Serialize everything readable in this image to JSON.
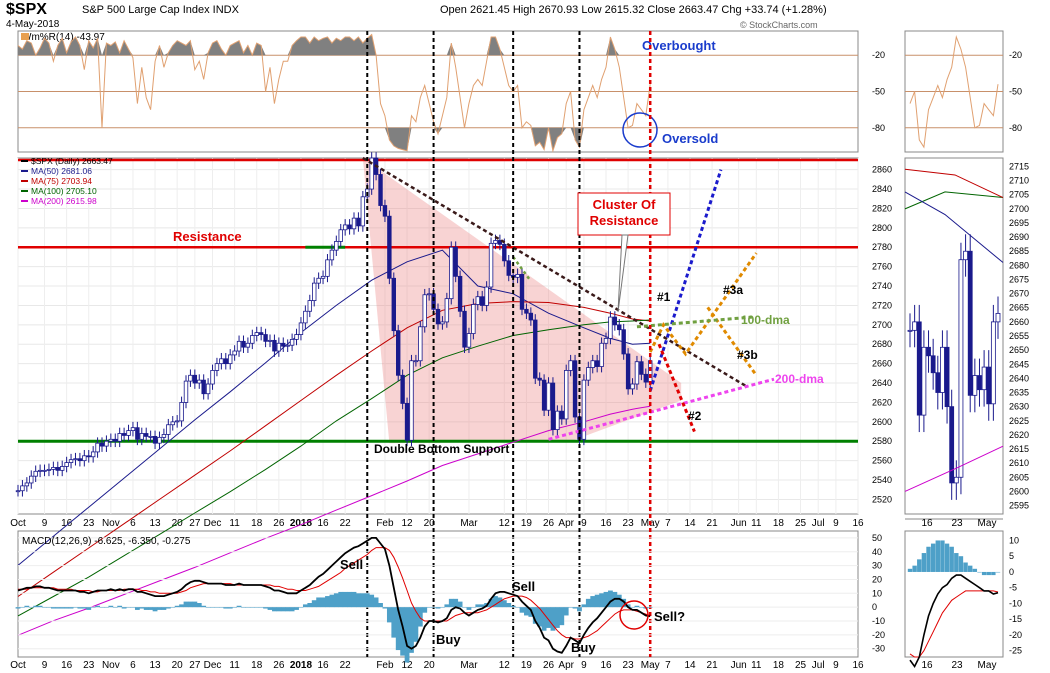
{
  "header": {
    "symbol": "$SPX",
    "description": "S&P 500 Large Cap Index INDX",
    "date": "4-May-2018",
    "open_label": "Open",
    "open": "2621.45",
    "high_label": "High",
    "high": "2670.93",
    "low_label": "Low",
    "low": "2615.32",
    "close_label": "Close",
    "close": "2663.47",
    "chg_label": "Chg",
    "chg": "+33.74 (+1.28%)",
    "credit": "© StockCharts.com"
  },
  "wpr_panel": {
    "label": "Wm%R(14) -43.97",
    "ticks": [
      -20,
      -50,
      -80
    ],
    "ylim": [
      -100,
      0
    ],
    "overbought_label": "Overbought",
    "oversold_label": "Oversold"
  },
  "price_panel": {
    "legend": [
      {
        "label": "$SPX (Daily) 2663.47",
        "color": "#000000"
      },
      {
        "label": "MA(50) 2681.06",
        "color": "#1a1a8c"
      },
      {
        "label": "MA(75) 2703.94",
        "color": "#c00000"
      },
      {
        "label": "MA(100) 2705.10",
        "color": "#006400"
      },
      {
        "label": "MA(200) 2615.98",
        "color": "#cc00cc"
      }
    ],
    "y_ticks": [
      2520,
      2540,
      2560,
      2580,
      2600,
      2620,
      2640,
      2660,
      2680,
      2700,
      2720,
      2740,
      2760,
      2780,
      2800,
      2820,
      2840,
      2860
    ],
    "ylim": [
      2505,
      2872
    ],
    "resistance_levels": [
      2870,
      2780
    ],
    "support_level": 2580,
    "annotations": {
      "resistance": "Resistance",
      "cluster": "Cluster Of\nResistance",
      "double_bottom": "Double Bottom Support",
      "s1": "#1",
      "s2": "#2",
      "s3a": "#3a",
      "s3b": "#3b",
      "dma100": "100-dma",
      "dma200": "200-dma"
    }
  },
  "side_panel": {
    "price_ticks": [
      2595,
      2600,
      2605,
      2610,
      2615,
      2620,
      2625,
      2630,
      2635,
      2640,
      2645,
      2650,
      2655,
      2660,
      2665,
      2670,
      2675,
      2680,
      2685,
      2690,
      2695,
      2700,
      2705,
      2710,
      2715
    ],
    "price_ylim": [
      2592,
      2718
    ],
    "wpr_ticks": [
      -20,
      -50,
      -80
    ],
    "macd_ticks": [
      10,
      5,
      0,
      -5,
      -10,
      -15,
      -20,
      -25
    ],
    "macd_ylim": [
      -27,
      13
    ],
    "x_labels": [
      "16",
      "23",
      "May"
    ]
  },
  "macd_panel": {
    "label": "MACD(12,26,9) -6.625, -6.350, -0.275",
    "ticks": [
      50,
      40,
      30,
      20,
      10,
      0,
      -10,
      -20,
      -30
    ],
    "ylim": [
      -36,
      55
    ],
    "annotations": {
      "sell1": "Sell",
      "buy1": "Buy",
      "sell2": "Sell",
      "buy2": "Buy",
      "sell3": "Sell?"
    }
  },
  "x_axis_labels": [
    {
      "t": 0,
      "label": "Oct"
    },
    {
      "t": 6,
      "label": "9"
    },
    {
      "t": 11,
      "label": "16"
    },
    {
      "t": 16,
      "label": "23"
    },
    {
      "t": 21,
      "label": "Nov"
    },
    {
      "t": 26,
      "label": "6"
    },
    {
      "t": 31,
      "label": "13"
    },
    {
      "t": 36,
      "label": "20"
    },
    {
      "t": 40,
      "label": "27"
    },
    {
      "t": 44,
      "label": "Dec"
    },
    {
      "t": 49,
      "label": "11"
    },
    {
      "t": 54,
      "label": "18"
    },
    {
      "t": 59,
      "label": "26"
    },
    {
      "t": 64,
      "label": "2018"
    },
    {
      "t": 69,
      "label": "16"
    },
    {
      "t": 74,
      "label": "22"
    },
    {
      "t": 83,
      "label": "Feb"
    },
    {
      "t": 88,
      "label": "12"
    },
    {
      "t": 93,
      "label": "20"
    },
    {
      "t": 102,
      "label": "Mar"
    },
    {
      "t": 110,
      "label": "12"
    },
    {
      "t": 115,
      "label": "19"
    },
    {
      "t": 120,
      "label": "26"
    },
    {
      "t": 124,
      "label": "Apr"
    },
    {
      "t": 128,
      "label": "9"
    },
    {
      "t": 133,
      "label": "16"
    },
    {
      "t": 138,
      "label": "23"
    },
    {
      "t": 143,
      "label": "May"
    },
    {
      "t": 147,
      "label": "7"
    },
    {
      "t": 152,
      "label": "14"
    },
    {
      "t": 157,
      "label": "21"
    },
    {
      "t": 163,
      "label": "Jun"
    },
    {
      "t": 167,
      "label": "11"
    },
    {
      "t": 172,
      "label": "18"
    },
    {
      "t": 177,
      "label": "25"
    },
    {
      "t": 181,
      "label": "Jul"
    },
    {
      "t": 185,
      "label": "9"
    },
    {
      "t": 190,
      "label": "16"
    }
  ],
  "chart_data": {
    "type": "line",
    "title": "$SPX S&P 500 Large Cap Index INDX",
    "x_unit": "trading day index (0 = 2 Oct 2017)",
    "events_vertical_lines_t": [
      79,
      94,
      112,
      127
    ],
    "today_line_t": 143,
    "series": [
      {
        "name": "$SPX (Daily)",
        "values": [
          2529,
          2534,
          2537,
          2544,
          2549,
          2550,
          2550,
          2551,
          2553,
          2550,
          2554,
          2558,
          2561,
          2562,
          2560,
          2565,
          2564,
          2569,
          2578,
          2575,
          2580,
          2582,
          2580,
          2588,
          2586,
          2591,
          2594,
          2582,
          2588,
          2585,
          2585,
          2578,
          2584,
          2587,
          2597,
          2600,
          2601,
          2620,
          2642,
          2648,
          2640,
          2643,
          2629,
          2639,
          2653,
          2660,
          2665,
          2660,
          2669,
          2673,
          2683,
          2677,
          2681,
          2689,
          2692,
          2690,
          2683,
          2684,
          2673,
          2681,
          2678,
          2679,
          2685,
          2690,
          2702,
          2714,
          2725,
          2743,
          2748,
          2750,
          2767,
          2777,
          2786,
          2798,
          2803,
          2799,
          2810,
          2802,
          2832,
          2840,
          2872,
          2855,
          2823,
          2812,
          2748,
          2694,
          2648,
          2619,
          2581,
          2663,
          2663,
          2698,
          2731,
          2732,
          2716,
          2701,
          2703,
          2727,
          2780,
          2750,
          2714,
          2677,
          2691,
          2721,
          2729,
          2720,
          2739,
          2784,
          2787,
          2783,
          2766,
          2751,
          2749,
          2752,
          2716,
          2712,
          2705,
          2645,
          2643,
          2612,
          2640,
          2592,
          2611,
          2603,
          2653,
          2663,
          2605,
          2582,
          2643,
          2656,
          2663,
          2657,
          2681,
          2686,
          2708,
          2700,
          2695,
          2670,
          2634,
          2639,
          2662,
          2649,
          2641,
          2663
        ]
      },
      {
        "name": "MA(50)",
        "values": [
          2452,
          2482,
          2512,
          2542,
          2572,
          2602,
          2631,
          2661,
          2692,
          2720,
          2746,
          2765,
          2777,
          2740,
          2732,
          2712,
          2697,
          2686,
          2680,
          2681
        ]
      },
      {
        "name": "MA(75)",
        "values": [
          2420,
          2445,
          2470,
          2495,
          2520,
          2545,
          2570,
          2596,
          2622,
          2648,
          2673,
          2697,
          2715,
          2722,
          2724,
          2723,
          2718,
          2712,
          2706,
          2704
        ]
      },
      {
        "name": "MA(100)",
        "values": [
          2400,
          2420,
          2440,
          2462,
          2484,
          2506,
          2528,
          2551,
          2575,
          2601,
          2624,
          2648,
          2666,
          2678,
          2689,
          2695,
          2700,
          2703,
          2704,
          2705
        ]
      },
      {
        "name": "MA(200)",
        "values": [
          2380,
          2395,
          2408,
          2422,
          2436,
          2450,
          2465,
          2480,
          2494,
          2509,
          2524,
          2539,
          2555,
          2567,
          2579,
          2591,
          2600,
          2608,
          2613,
          2616
        ]
      }
    ],
    "ma_x_t": [
      0,
      8,
      16,
      24,
      32,
      40,
      48,
      56,
      64,
      72,
      80,
      88,
      96,
      104,
      112,
      120,
      128,
      134,
      139,
      143
    ],
    "wpr_values": [
      -12,
      -15,
      -8,
      -10,
      -20,
      -14,
      -6,
      -10,
      -25,
      -12,
      -6,
      -18,
      -9,
      -5,
      -12,
      -32,
      -8,
      -14,
      -6,
      -80,
      -10,
      -12,
      -9,
      -18,
      -8,
      -15,
      -22,
      -60,
      -30,
      -55,
      -65,
      -25,
      -12,
      -30,
      -18,
      -12,
      -8,
      -10,
      -12,
      -8,
      -32,
      -25,
      -40,
      -18,
      -10,
      -8,
      -15,
      -20,
      -12,
      -10,
      -8,
      -18,
      -12,
      -20,
      -10,
      -12,
      -50,
      -30,
      -60,
      -40,
      -25,
      -25,
      -12,
      -8,
      -5,
      -5,
      -10,
      -5,
      -8,
      -6,
      -5,
      -10,
      -6,
      -8,
      -5,
      -5,
      -8,
      -5,
      -10,
      -6,
      -3,
      -20,
      -60,
      -70,
      -90,
      -95,
      -97,
      -98,
      -99,
      -70,
      -75,
      -55,
      -45,
      -60,
      -75,
      -85,
      -70,
      -55,
      -10,
      -30,
      -55,
      -80,
      -60,
      -45,
      -40,
      -45,
      -25,
      -5,
      -5,
      -15,
      -30,
      -45,
      -50,
      -45,
      -80,
      -75,
      -78,
      -95,
      -92,
      -98,
      -80,
      -99,
      -88,
      -85,
      -60,
      -50,
      -90,
      -96,
      -65,
      -55,
      -45,
      -55,
      -40,
      -30,
      -5,
      -15,
      -30,
      -55,
      -80,
      -78,
      -60,
      -65,
      -70,
      -44
    ],
    "macd_values": [
      12,
      13,
      14,
      14,
      15,
      15,
      14,
      14,
      13,
      12,
      12,
      12,
      12,
      12,
      11,
      11,
      10,
      11,
      12,
      12,
      12,
      13,
      12,
      13,
      12,
      13,
      13,
      11,
      11,
      10,
      9,
      8,
      8,
      8,
      9,
      10,
      11,
      13,
      16,
      18,
      19,
      19,
      18,
      17,
      17,
      17,
      17,
      16,
      16,
      16,
      17,
      16,
      16,
      16,
      16,
      16,
      15,
      14,
      12,
      12,
      11,
      10,
      10,
      10,
      12,
      14,
      16,
      19,
      22,
      24,
      27,
      30,
      33,
      36,
      39,
      41,
      43,
      44,
      46,
      48,
      50,
      50,
      46,
      42,
      30,
      14,
      -2,
      -14,
      -28,
      -30,
      -28,
      -22,
      -14,
      -10,
      -10,
      -11,
      -10,
      -8,
      -2,
      0,
      -1,
      -4,
      -6,
      -4,
      -2,
      -1,
      1,
      6,
      10,
      11,
      11,
      10,
      9,
      8,
      4,
      1,
      -2,
      -10,
      -15,
      -22,
      -24,
      -30,
      -32,
      -33,
      -28,
      -22,
      -24,
      -26,
      -20,
      -15,
      -11,
      -8,
      -4,
      0,
      4,
      6,
      6,
      4,
      0,
      -2,
      -2,
      -4,
      -6,
      -6.6
    ],
    "macd_signal_values": [
      13,
      13,
      13,
      14,
      14,
      14,
      14,
      14,
      14,
      13,
      13,
      13,
      13,
      12,
      12,
      12,
      12,
      11,
      11,
      12,
      12,
      12,
      12,
      12,
      13,
      13,
      13,
      13,
      12,
      12,
      11,
      11,
      10,
      10,
      10,
      10,
      10,
      11,
      12,
      14,
      15,
      16,
      17,
      17,
      17,
      17,
      17,
      17,
      17,
      16,
      16,
      16,
      16,
      16,
      16,
      16,
      16,
      16,
      15,
      15,
      14,
      13,
      13,
      12,
      12,
      12,
      13,
      14,
      15,
      17,
      19,
      21,
      23,
      25,
      28,
      30,
      32,
      34,
      36,
      38,
      41,
      43,
      43,
      43,
      41,
      36,
      29,
      21,
      12,
      3,
      -3,
      -8,
      -10,
      -10,
      -10,
      -10,
      -10,
      -10,
      -8,
      -6,
      -5,
      -4,
      -4,
      -4,
      -4,
      -3,
      -2,
      0,
      2,
      4,
      6,
      7,
      8,
      8,
      8,
      7,
      5,
      2,
      -1,
      -5,
      -9,
      -13,
      -17,
      -20,
      -22,
      -22,
      -23,
      -23,
      -22,
      -21,
      -19,
      -17,
      -14,
      -11,
      -8,
      -5,
      -3,
      -2,
      -2,
      -2,
      -3,
      -4,
      -5,
      -6.35
    ],
    "side_price_values": [
      2657,
      2660,
      2627,
      2651,
      2648,
      2642,
      2635,
      2651,
      2630,
      2603,
      2605,
      2682,
      2685,
      2634,
      2641,
      2636,
      2644,
      2631,
      2660,
      2663
    ],
    "side_macd_values": [
      -28,
      -30,
      -27,
      -20,
      -14,
      -10,
      -7,
      -5,
      -4,
      -2,
      -1,
      -1,
      -2,
      -3,
      -4,
      -5,
      -6,
      -6,
      -7,
      -6.6
    ],
    "side_signal_values": [
      -26,
      -27,
      -27,
      -25,
      -22,
      -19,
      -16,
      -13,
      -11,
      -9,
      -8,
      -7,
      -6,
      -6,
      -6,
      -6,
      -6,
      -6,
      -6,
      -6.35
    ],
    "side_hist_values": [
      1,
      2,
      4,
      6,
      8,
      9,
      10,
      10,
      9,
      8,
      6,
      5,
      3,
      2,
      1,
      0,
      -1,
      -1,
      -1,
      0
    ]
  }
}
